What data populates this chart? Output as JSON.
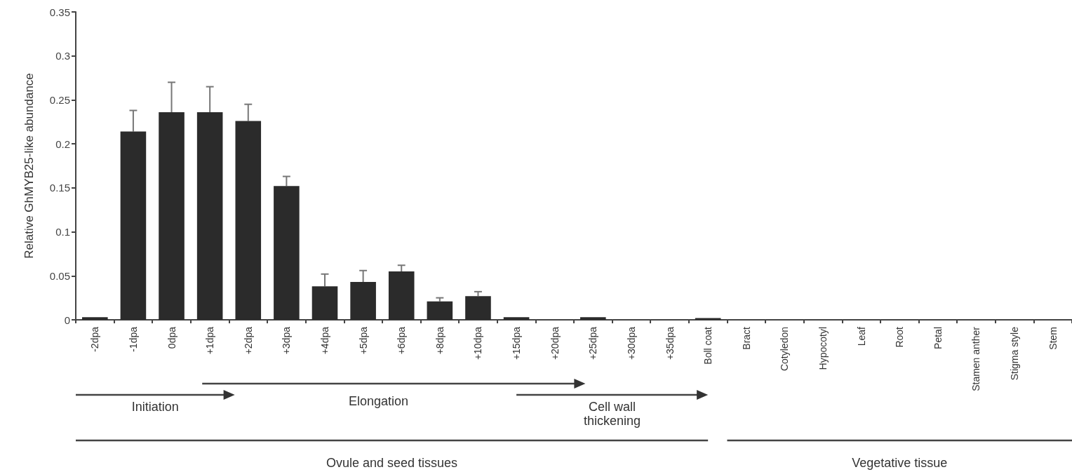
{
  "chart_data": {
    "type": "bar",
    "ylabel": "Relative GhMYB25-like abundance",
    "categories": [
      "-2dpa",
      "-1dpa",
      "0dpa",
      "+1dpa",
      "+2dpa",
      "+3dpa",
      "+4dpa",
      "+5dpa",
      "+6dpa",
      "+8dpa",
      "+10dpa",
      "+15dpa",
      "+20dpa",
      "+25dpa",
      "+30dpa",
      "+35dpa",
      "Boll coat",
      "Bract",
      "Cotyledon",
      "Hypocotyl",
      "Leaf",
      "Root",
      "Petal",
      "Stamen anther",
      "Stigma style",
      "Stem"
    ],
    "values": [
      0.003,
      0.214,
      0.236,
      0.236,
      0.226,
      0.152,
      0.038,
      0.043,
      0.055,
      0.021,
      0.027,
      0.003,
      0,
      0.003,
      0,
      0,
      0.002,
      0,
      0,
      0,
      0,
      0,
      0,
      0,
      0,
      0
    ],
    "errors": [
      null,
      [
        0.214,
        0.238
      ],
      [
        0.236,
        0.27
      ],
      [
        0.236,
        0.265
      ],
      [
        0.226,
        0.245
      ],
      [
        0.152,
        0.163
      ],
      [
        0.038,
        0.052
      ],
      [
        0.043,
        0.056
      ],
      [
        0.055,
        0.062
      ],
      [
        0.021,
        0.025
      ],
      [
        0.027,
        0.032
      ],
      null,
      null,
      null,
      null,
      null,
      null,
      null,
      null,
      null,
      null,
      null,
      null,
      null,
      null,
      null
    ],
    "color": "#2b2b2b",
    "ylim": [
      0,
      0.35
    ],
    "yticks": [
      0,
      0.05,
      0.1,
      0.15,
      0.2,
      0.25,
      0.3,
      0.35
    ],
    "grid": false,
    "annotations": [
      "Initiation",
      "Elongation",
      "Cell wall thickening",
      "Ovule and seed tissues",
      "Vegetative tissue"
    ]
  }
}
